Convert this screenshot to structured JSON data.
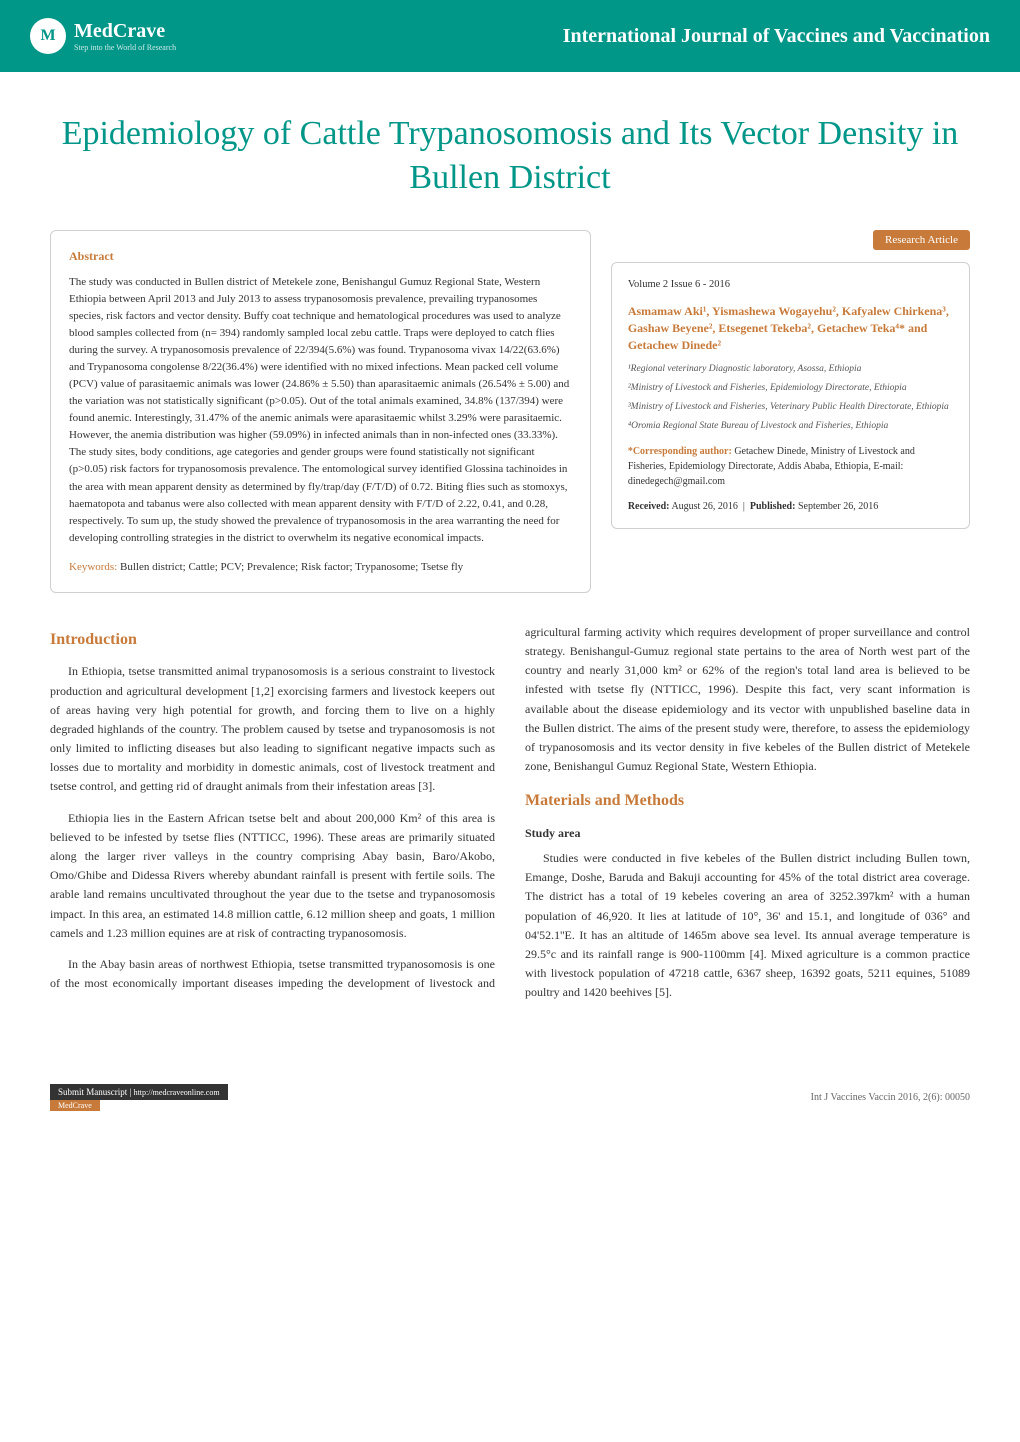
{
  "header": {
    "logo_name": "MedCrave",
    "logo_tagline": "Step into the World of Research",
    "journal": "International Journal of Vaccines and Vaccination"
  },
  "article": {
    "title": "Epidemiology of Cattle Trypanosomosis and Its Vector Density in Bullen District",
    "badge": "Research Article",
    "volume": "Volume 2 Issue 6 - 2016"
  },
  "abstract": {
    "label": "Abstract",
    "text": "The study was conducted in Bullen district of Metekele zone, Benishangul Gumuz Regional State, Western Ethiopia between April 2013 and July 2013 to assess trypanosomosis prevalence, prevailing trypanosomes species, risk factors and vector density. Buffy coat technique and hematological procedures was used to analyze blood samples collected from (n= 394) randomly sampled local zebu cattle. Traps were deployed to catch flies during the survey. A trypanosomosis prevalence of 22/394(5.6%) was found. Trypanosoma vivax 14/22(63.6%) and Trypanosoma congolense 8/22(36.4%) were identified with no mixed infections. Mean packed cell volume (PCV) value of parasitaemic animals was lower (24.86% ± 5.50) than aparasitaemic animals (26.54% ± 5.00) and the variation was not statistically significant (p>0.05). Out of the total animals examined, 34.8% (137/394) were found anemic. Interestingly, 31.47% of the anemic animals were aparasitaemic whilst 3.29% were parasitaemic. However, the anemia distribution was higher (59.09%) in infected animals than in non-infected ones (33.33%). The study sites, body conditions, age categories and gender groups were found statistically not significant (p>0.05) risk factors for trypanosomosis prevalence. The entomological survey identified Glossina tachinoides in the area with mean apparent density as determined by fly/trap/day (F/T/D) of 0.72. Biting flies such as stomoxys, haematopota and tabanus were also collected with mean apparent density with F/T/D of 2.22, 0.41, and 0.28, respectively. To sum up, the study showed the prevalence of trypanosomosis in the area warranting the need for developing controlling strategies in the district to overwhelm its negative economical impacts.",
    "keywords_label": "Keywords:",
    "keywords": "Bullen district; Cattle; PCV; Prevalence; Risk factor; Trypanosome; Tsetse fly"
  },
  "authors": {
    "names": "Asmamaw Aki¹, Yismashewa Wogayehu², Kafyalew Chirkena³, Gashaw Beyene², Etsegenet Tekeba², Getachew Teka⁴* and Getachew Dinede²",
    "affils": [
      "¹Regional veterinary Diagnostic laboratory, Asossa, Ethiopia",
      "²Ministry of Livestock and Fisheries, Epidemiology Directorate, Ethiopia",
      "³Ministry of Livestock and Fisheries, Veterinary Public Health Directorate, Ethiopia",
      "⁴Oromia Regional State Bureau of Livestock and Fisheries, Ethiopia"
    ]
  },
  "corresp": {
    "label": "*Corresponding author:",
    "text": "Getachew Dinede, Ministry of Livestock and Fisheries, Epidemiology Directorate, Addis Ababa, Ethiopia, E-mail: dinedegech@gmail.com"
  },
  "dates": {
    "received_label": "Received:",
    "received": "August 26, 2016",
    "published_label": "Published:",
    "published": "September 26, 2016"
  },
  "sections": {
    "intro_heading": "Introduction",
    "intro_p1": "In Ethiopia, tsetse transmitted animal trypanosomosis is a serious constraint to livestock production and agricultural development [1,2] exorcising farmers and livestock keepers out of areas having very high potential for growth, and forcing them to live on a highly degraded highlands of the country. The problem caused by tsetse and trypanosomosis is not only limited to inflicting diseases but also leading to significant negative impacts such as losses due to mortality and morbidity in domestic animals, cost of livestock treatment and tsetse control, and getting rid of draught animals from their infestation areas [3].",
    "intro_p2": "Ethiopia lies in the Eastern African tsetse belt and about 200,000 Km² of this area is believed to be infested by tsetse flies (NTTICC, 1996). These areas are primarily situated along the larger river valleys in the country comprising Abay basin, Baro/Akobo, Omo/Ghibe and Didessa Rivers whereby abundant rainfall is present with fertile soils. The arable land remains uncultivated throughout the year due to the tsetse and trypanosomosis impact. In this area, an estimated 14.8 million cattle, 6.12 million sheep and goats, 1 million camels and 1.23 million equines are at risk of contracting trypanosomosis.",
    "intro_p3": "In the Abay basin areas of northwest Ethiopia, tsetse transmitted trypanosomosis is one of the most economically important diseases impeding the development of livestock and agricultural farming activity which requires development of proper surveillance and control strategy. Benishangul-Gumuz regional state pertains to the area of North west part of the country and nearly 31,000 km² or 62% of the region's total land area is believed to be infested with tsetse fly (NTTICC, 1996). Despite this fact, very scant information is available about the disease epidemiology and its vector with unpublished baseline data in the Bullen district. The aims of the present study were, therefore, to assess the epidemiology of trypanosomosis and its vector density in five kebeles of the Bullen district of Metekele zone, Benishangul Gumuz Regional State, Western Ethiopia.",
    "mm_heading": "Materials and Methods",
    "mm_sub": "Study area",
    "mm_p1": "Studies were conducted in five kebeles of the Bullen district including Bullen town, Emange, Doshe, Baruda and Bakuji accounting for 45% of the total district area coverage. The district has a total of 19 kebeles covering an area of 3252.397km² with a human population of 46,920. It lies at latitude of 10°, 36' and 15.1, and longitude of 036° and 04'52.1''E. It has an altitude of 1465m above sea level. Its annual average temperature is 29.5°c and its rainfall range is 900-1100mm [4]. Mixed agriculture is a common practice with livestock population of 47218 cattle, 6367 sheep, 16392 goats, 5211 equines, 51089 poultry and 1420 beehives [5]."
  },
  "footer": {
    "submit": "Submit Manuscript",
    "url": "http://medcraveonline.com",
    "medcrave": "MedCrave",
    "citation": "Int J Vaccines Vaccin 2016, 2(6): 00050"
  },
  "colors": {
    "teal": "#009688",
    "orange": "#c77a3a",
    "text": "#333333",
    "border": "#d0d0d0"
  }
}
